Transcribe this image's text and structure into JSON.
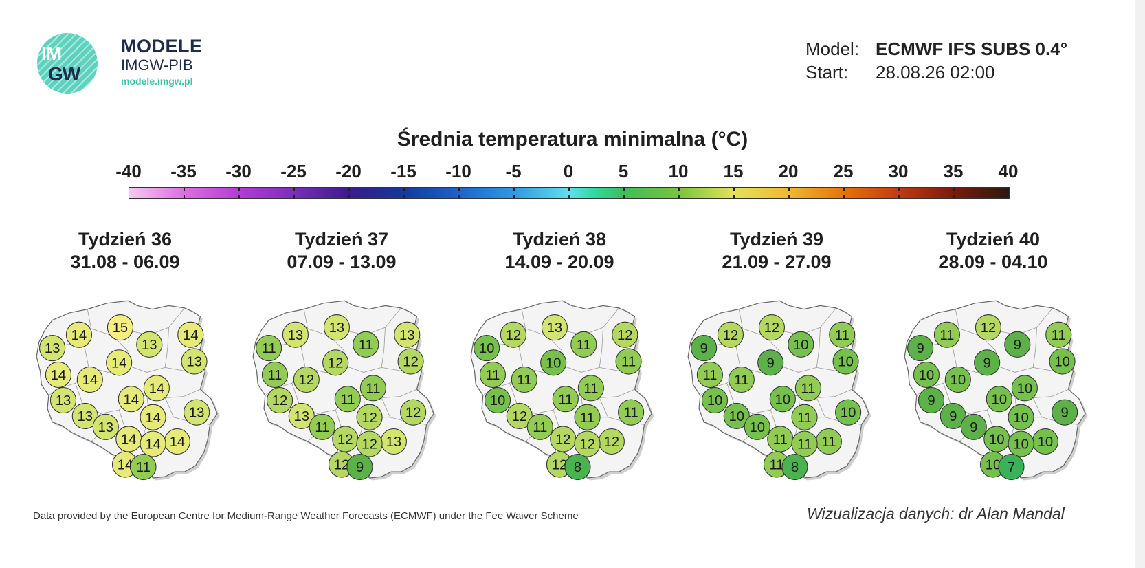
{
  "logo": {
    "circle_line1": "IM",
    "circle_line2": "GW",
    "name": "MODELE",
    "org": "IMGW-PIB",
    "url": "modele.imgw.pl",
    "brand_color": "#3cc1ad",
    "navy_color": "#1e2b4d"
  },
  "meta": {
    "model_label": "Model:",
    "model_value": "ECMWF IFS SUBS 0.4°",
    "start_label": "Start:",
    "start_value": "28.08.26 02:00"
  },
  "title": "Średnia temperatura minimalna (°C)",
  "scale": {
    "ticks": [
      "-40",
      "-35",
      "-30",
      "-25",
      "-20",
      "-15",
      "-10",
      "-5",
      "0",
      "5",
      "10",
      "15",
      "20",
      "25",
      "30",
      "35",
      "40"
    ],
    "min": -40,
    "max": 40
  },
  "weeks": [
    {
      "title": "Tydzień 36",
      "dates": "31.08 - 06.09",
      "values": [
        14,
        15,
        13,
        14,
        13,
        13,
        14,
        14,
        14,
        14,
        13,
        14,
        13,
        13,
        14,
        13,
        14,
        14,
        14,
        14,
        11
      ]
    },
    {
      "title": "Tydzień 37",
      "dates": "07.09 - 13.09",
      "values": [
        13,
        13,
        11,
        13,
        11,
        12,
        12,
        11,
        12,
        11,
        12,
        11,
        13,
        12,
        12,
        11,
        12,
        13,
        12,
        12,
        9
      ]
    },
    {
      "title": "Tydzień 38",
      "dates": "14.09 - 20.09",
      "values": [
        12,
        13,
        11,
        12,
        10,
        11,
        10,
        11,
        11,
        11,
        10,
        11,
        12,
        11,
        11,
        11,
        12,
        12,
        12,
        12,
        8
      ]
    },
    {
      "title": "Tydzień 39",
      "dates": "21.09 - 27.09",
      "values": [
        12,
        12,
        10,
        11,
        9,
        10,
        9,
        11,
        11,
        11,
        10,
        10,
        10,
        10,
        11,
        10,
        11,
        11,
        11,
        11,
        8
      ]
    },
    {
      "title": "Tydzień 40",
      "dates": "28.09 - 04.10",
      "values": [
        11,
        12,
        9,
        11,
        9,
        10,
        9,
        10,
        10,
        10,
        9,
        10,
        9,
        9,
        10,
        9,
        10,
        10,
        10,
        10,
        7
      ]
    }
  ],
  "footer": {
    "left": "Data provided by the European Centre for Medium-Range Weather Forecasts (ECMWF) under the Fee Waiver Scheme",
    "right": "Wizualizacja danych: dr Alan Mandal"
  }
}
